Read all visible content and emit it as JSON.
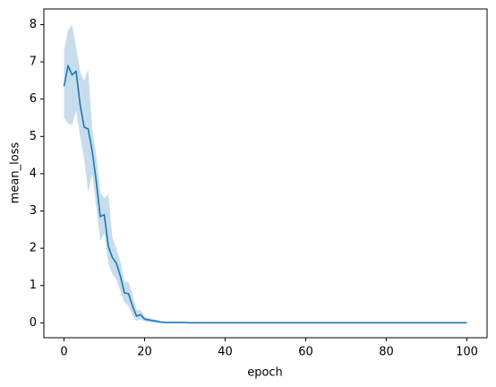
{
  "chart_data": {
    "type": "line",
    "x_label": "epoch",
    "y_label": "mean_loss",
    "x": [
      0,
      1,
      2,
      3,
      4,
      5,
      6,
      7,
      8,
      9,
      10,
      11,
      12,
      13,
      14,
      15,
      16,
      17,
      18,
      19,
      20,
      21,
      22,
      23,
      24,
      25,
      26,
      27,
      28,
      29,
      30,
      31,
      32,
      33,
      34,
      35,
      36,
      37,
      38,
      39,
      40,
      41,
      42,
      43,
      44,
      45,
      46,
      47,
      48,
      49,
      50,
      51,
      52,
      53,
      54,
      55,
      56,
      57,
      58,
      59,
      60,
      61,
      62,
      63,
      64,
      65,
      66,
      67,
      68,
      69,
      70,
      71,
      72,
      73,
      74,
      75,
      76,
      77,
      78,
      79,
      80,
      81,
      82,
      83,
      84,
      85,
      86,
      87,
      88,
      89,
      90,
      91,
      92,
      93,
      94,
      95,
      96,
      97,
      98,
      99,
      100
    ],
    "series": [
      {
        "color": "#1f77b4",
        "values": [
          6.35,
          6.9,
          6.65,
          6.75,
          5.85,
          5.25,
          5.2,
          4.6,
          3.8,
          2.85,
          2.9,
          2.05,
          1.75,
          1.6,
          1.25,
          0.8,
          0.78,
          0.45,
          0.18,
          0.22,
          0.1,
          0.08,
          0.06,
          0.04,
          0.02,
          0.01,
          0.01,
          0.01,
          0.01,
          0.01,
          0.01,
          0,
          0,
          0,
          0,
          0,
          0,
          0,
          0,
          0,
          0,
          0,
          0,
          0,
          0,
          0,
          0,
          0,
          0,
          0,
          0,
          0,
          0,
          0,
          0,
          0,
          0,
          0,
          0,
          0,
          0,
          0,
          0,
          0,
          0,
          0,
          0,
          0,
          0,
          0,
          0,
          0,
          0,
          0,
          0,
          0,
          0,
          0,
          0,
          0,
          0,
          0,
          0,
          0,
          0,
          0,
          0,
          0,
          0,
          0,
          0,
          0,
          0,
          0,
          0,
          0,
          0,
          0,
          0,
          0,
          0
        ],
        "ci_lower": [
          5.5,
          5.35,
          5.3,
          5.7,
          5.0,
          4.4,
          3.5,
          4.0,
          3.1,
          2.2,
          2.4,
          1.6,
          1.3,
          1.15,
          0.85,
          0.55,
          0.45,
          0.2,
          0.05,
          0.1,
          0.03,
          0.02,
          0.01,
          0.005,
          0,
          0,
          0,
          0,
          0,
          0,
          0,
          0,
          0,
          0,
          0,
          0,
          0,
          0,
          0,
          0,
          0,
          0,
          0,
          0,
          0,
          0,
          0,
          0,
          0,
          0,
          0,
          0,
          0,
          0,
          0,
          0,
          0,
          0,
          0,
          0,
          0,
          0,
          0,
          0,
          0,
          0,
          0,
          0,
          0,
          0,
          0,
          0,
          0,
          0,
          0,
          0,
          0,
          0,
          0,
          0,
          0,
          0,
          0,
          0,
          0,
          0,
          0,
          0,
          0,
          0,
          0,
          0,
          0,
          0,
          0,
          0,
          0,
          0,
          0,
          0,
          0
        ],
        "ci_upper": [
          7.3,
          7.85,
          8.0,
          7.4,
          6.75,
          6.5,
          6.8,
          5.2,
          4.5,
          3.5,
          3.35,
          3.45,
          2.3,
          2.0,
          1.65,
          1.1,
          1.1,
          0.75,
          0.35,
          0.35,
          0.17,
          0.13,
          0.1,
          0.08,
          0.05,
          0.03,
          0.02,
          0.02,
          0.02,
          0.02,
          0.02,
          0.01,
          0.01,
          0.01,
          0.01,
          0.01,
          0.01,
          0.01,
          0.01,
          0.01,
          0.01,
          0.01,
          0.01,
          0.01,
          0.01,
          0.01,
          0.01,
          0.01,
          0.01,
          0.01,
          0.01,
          0.01,
          0.01,
          0.01,
          0.01,
          0.01,
          0.01,
          0.01,
          0.01,
          0.01,
          0.01,
          0.01,
          0.01,
          0.01,
          0.01,
          0.01,
          0.01,
          0.01,
          0.01,
          0.01,
          0.01,
          0.01,
          0.01,
          0.01,
          0.01,
          0.01,
          0.01,
          0.01,
          0.01,
          0.01,
          0.01,
          0.01,
          0.01,
          0.01,
          0.01,
          0.01,
          0.01,
          0.01,
          0.01,
          0.01,
          0.01,
          0.01,
          0.01,
          0.01,
          0.01,
          0.01,
          0.01,
          0.01,
          0.01,
          0.01,
          0.01
        ]
      }
    ],
    "xlim": [
      -5,
      105
    ],
    "ylim": [
      -0.4,
      8.42
    ],
    "xticks": [
      0,
      20,
      40,
      60,
      80,
      100
    ],
    "yticks": [
      0,
      1,
      2,
      3,
      4,
      5,
      6,
      7,
      8
    ],
    "grid": false
  }
}
